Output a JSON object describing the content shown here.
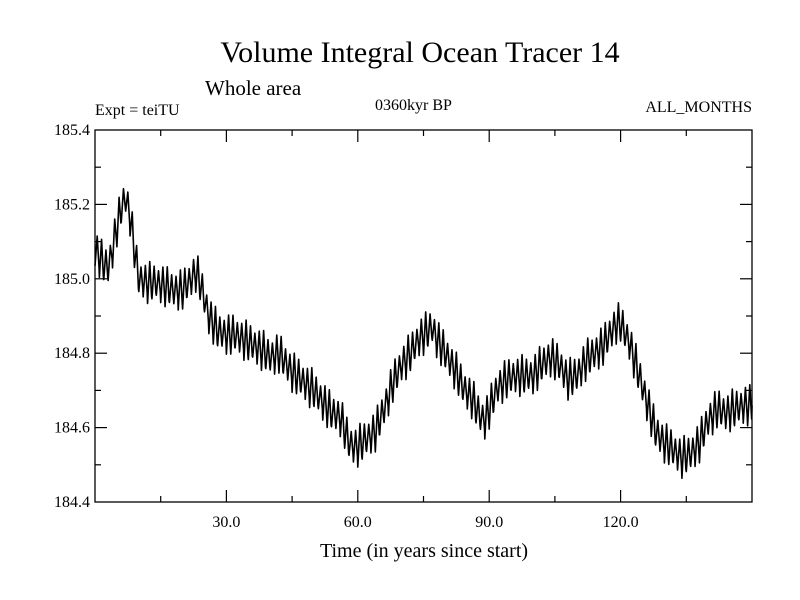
{
  "chart_data": {
    "type": "line",
    "title": "Volume Integral Ocean Tracer 14",
    "subtitle": "Whole area",
    "left_label": "Expt = teiTU",
    "center_label": "0360kyr BP",
    "right_label": "ALL_MONTHS",
    "xlabel": "Time (in years since start)",
    "ylabel": "",
    "xlim": [
      0,
      150
    ],
    "ylim": [
      184.4,
      185.4
    ],
    "x_ticks": [
      30,
      60,
      90,
      120
    ],
    "x_tick_labels": [
      "30.0",
      "60.0",
      "90.0",
      "120.0"
    ],
    "y_ticks": [
      184.4,
      184.6,
      184.8,
      185.0,
      185.2,
      185.4
    ],
    "y_tick_labels": [
      "184.4",
      "184.6",
      "184.8",
      "185.0",
      "185.2",
      "185.4"
    ],
    "grid": false,
    "line_color": "#000000",
    "annual_cycle_amplitude": 0.045,
    "series": [
      {
        "x": [
          0,
          2,
          3,
          4,
          5,
          6,
          7,
          8,
          9,
          10,
          12,
          14,
          16,
          18,
          20,
          22,
          23,
          24,
          26,
          28,
          30,
          32,
          35,
          38,
          40,
          42,
          45,
          48,
          50,
          52,
          54,
          56,
          58,
          59,
          60,
          62,
          64,
          66,
          68,
          70,
          72,
          74,
          76,
          77,
          78,
          80,
          82,
          84,
          86,
          88,
          89,
          90,
          92,
          94,
          96,
          98,
          100,
          102,
          104,
          106,
          108,
          110,
          112,
          114,
          116,
          118,
          119,
          120,
          122,
          124,
          126,
          128,
          130,
          132,
          134,
          136,
          138,
          140,
          142,
          144,
          146,
          148,
          150
        ],
        "y": [
          185.08,
          185.04,
          185.03,
          185.08,
          185.14,
          185.19,
          185.22,
          185.17,
          185.08,
          185.0,
          184.99,
          184.99,
          184.98,
          184.97,
          184.97,
          185.0,
          185.02,
          184.99,
          184.9,
          184.86,
          184.85,
          184.85,
          184.83,
          184.81,
          184.79,
          184.8,
          184.75,
          184.72,
          184.7,
          184.67,
          184.64,
          184.63,
          184.56,
          184.55,
          184.55,
          184.57,
          184.59,
          184.65,
          184.72,
          184.77,
          184.8,
          184.84,
          184.86,
          184.87,
          184.84,
          184.8,
          184.76,
          184.71,
          184.68,
          184.63,
          184.62,
          184.65,
          184.71,
          184.73,
          184.74,
          184.74,
          184.74,
          184.77,
          184.79,
          184.77,
          184.73,
          184.74,
          184.78,
          184.8,
          184.82,
          184.86,
          184.88,
          184.88,
          184.83,
          184.75,
          184.67,
          184.59,
          184.56,
          184.54,
          184.52,
          184.53,
          184.56,
          184.62,
          184.65,
          184.64,
          184.65,
          184.66,
          184.66
        ]
      }
    ]
  }
}
